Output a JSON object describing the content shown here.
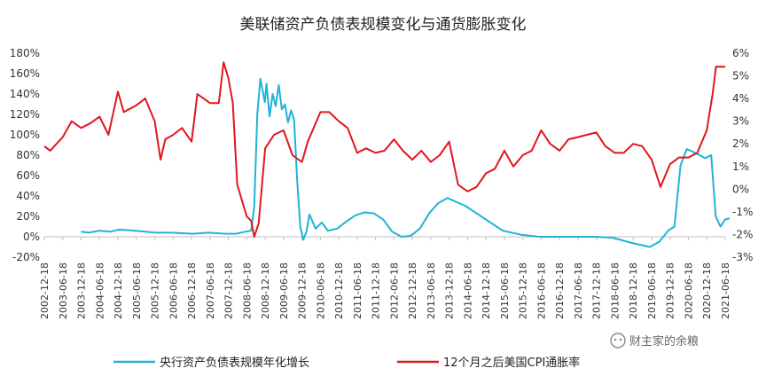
{
  "chart_data": {
    "type": "line",
    "title": "美联储资产负债表规模变化与通货膨胀变化",
    "grid": false,
    "legend_position": "bottom",
    "watermark": "财主家的余粮",
    "colors": {
      "balance": "#22B2D8",
      "cpi": "#E0161E"
    },
    "left_axis": {
      "min": -20,
      "max": 180,
      "ticks": [
        "-20%",
        "0%",
        "20%",
        "40%",
        "60%",
        "80%",
        "100%",
        "120%",
        "140%",
        "160%",
        "180%"
      ]
    },
    "right_axis": {
      "min": -3,
      "max": 6,
      "ticks": [
        "-3%",
        "-2%",
        "-1%",
        "0%",
        "1%",
        "2%",
        "3%",
        "4%",
        "5%",
        "6%"
      ]
    },
    "x_ticks": [
      "2002-12-18",
      "2003-06-18",
      "2003-12-18",
      "2004-06-18",
      "2004-12-18",
      "2005-06-18",
      "2005-12-18",
      "2006-06-18",
      "2006-12-18",
      "2007-06-18",
      "2007-12-18",
      "2008-06-18",
      "2008-12-18",
      "2009-06-18",
      "2009-12-18",
      "2010-06-18",
      "2010-12-18",
      "2011-06-18",
      "2011-12-18",
      "2012-06-18",
      "2012-12-18",
      "2013-06-18",
      "2013-12-18",
      "2014-06-18",
      "2014-12-18",
      "2015-06-18",
      "2015-12-18",
      "2016-06-18",
      "2016-12-18",
      "2017-06-18",
      "2017-12-18",
      "2018-06-18",
      "2018-12-18",
      "2019-06-18",
      "2019-12-18",
      "2020-06-18",
      "2020-12-18",
      "2021-06-18"
    ],
    "series": [
      {
        "name": "央行资产负债表规模年化增长",
        "axis": "left",
        "points": [
          [
            "2003-12-18",
            5
          ],
          [
            "2004-03-01",
            4
          ],
          [
            "2004-06-18",
            6
          ],
          [
            "2004-10-01",
            5
          ],
          [
            "2005-01-01",
            7
          ],
          [
            "2005-06-01",
            6
          ],
          [
            "2006-01-01",
            4
          ],
          [
            "2006-06-01",
            4
          ],
          [
            "2007-01-01",
            3
          ],
          [
            "2007-06-01",
            4
          ],
          [
            "2007-12-01",
            3
          ],
          [
            "2008-03-01",
            3
          ],
          [
            "2008-06-01",
            5
          ],
          [
            "2008-08-01",
            6
          ],
          [
            "2008-09-01",
            30
          ],
          [
            "2008-10-01",
            120
          ],
          [
            "2008-11-01",
            155
          ],
          [
            "2008-12-15",
            132
          ],
          [
            "2009-01-01",
            150
          ],
          [
            "2009-02-01",
            118
          ],
          [
            "2009-03-01",
            140
          ],
          [
            "2009-04-01",
            128
          ],
          [
            "2009-05-01",
            149
          ],
          [
            "2009-06-01",
            125
          ],
          [
            "2009-07-01",
            130
          ],
          [
            "2009-08-01",
            112
          ],
          [
            "2009-09-01",
            124
          ],
          [
            "2009-10-01",
            115
          ],
          [
            "2009-11-01",
            55
          ],
          [
            "2009-12-01",
            10
          ],
          [
            "2010-01-01",
            -3
          ],
          [
            "2010-02-01",
            5
          ],
          [
            "2010-03-01",
            22
          ],
          [
            "2010-05-01",
            8
          ],
          [
            "2010-07-01",
            14
          ],
          [
            "2010-09-01",
            6
          ],
          [
            "2010-12-01",
            8
          ],
          [
            "2011-03-01",
            15
          ],
          [
            "2011-06-01",
            21
          ],
          [
            "2011-09-01",
            24
          ],
          [
            "2011-12-01",
            23
          ],
          [
            "2012-03-01",
            17
          ],
          [
            "2012-06-01",
            5
          ],
          [
            "2012-09-01",
            0
          ],
          [
            "2012-12-01",
            1
          ],
          [
            "2013-03-01",
            8
          ],
          [
            "2013-06-01",
            23
          ],
          [
            "2013-09-01",
            33
          ],
          [
            "2013-12-01",
            38
          ],
          [
            "2014-06-01",
            30
          ],
          [
            "2014-12-01",
            18
          ],
          [
            "2015-06-01",
            6
          ],
          [
            "2015-12-01",
            2
          ],
          [
            "2016-06-01",
            0
          ],
          [
            "2016-12-01",
            0
          ],
          [
            "2017-06-01",
            0
          ],
          [
            "2017-12-01",
            0
          ],
          [
            "2018-06-01",
            -1
          ],
          [
            "2018-12-01",
            -6
          ],
          [
            "2019-06-01",
            -10
          ],
          [
            "2019-09-01",
            -5
          ],
          [
            "2019-12-01",
            6
          ],
          [
            "2020-02-01",
            10
          ],
          [
            "2020-04-01",
            70
          ],
          [
            "2020-06-01",
            86
          ],
          [
            "2020-09-01",
            82
          ],
          [
            "2020-12-01",
            77
          ],
          [
            "2021-02-01",
            80
          ],
          [
            "2021-03-15",
            20
          ],
          [
            "2021-05-01",
            10
          ],
          [
            "2021-06-18",
            17
          ],
          [
            "2021-08-01",
            18
          ]
        ]
      },
      {
        "name": "12个月之后美国CPI通胀率",
        "axis": "right",
        "points": [
          [
            "2002-12-18",
            1.9
          ],
          [
            "2003-02-15",
            1.7
          ],
          [
            "2003-06-18",
            2.3
          ],
          [
            "2003-09-15",
            3.0
          ],
          [
            "2003-12-18",
            2.7
          ],
          [
            "2004-03-15",
            2.9
          ],
          [
            "2004-06-18",
            3.2
          ],
          [
            "2004-09-15",
            2.4
          ],
          [
            "2004-12-18",
            4.3
          ],
          [
            "2005-02-15",
            3.4
          ],
          [
            "2005-06-18",
            3.7
          ],
          [
            "2005-09-15",
            4.0
          ],
          [
            "2005-12-18",
            3.0
          ],
          [
            "2006-02-15",
            1.3
          ],
          [
            "2006-04-01",
            2.2
          ],
          [
            "2006-06-18",
            2.4
          ],
          [
            "2006-09-15",
            2.7
          ],
          [
            "2006-12-18",
            2.1
          ],
          [
            "2007-02-15",
            4.2
          ],
          [
            "2007-06-18",
            3.8
          ],
          [
            "2007-09-15",
            3.8
          ],
          [
            "2007-11-01",
            5.6
          ],
          [
            "2007-12-18",
            4.9
          ],
          [
            "2008-02-01",
            3.8
          ],
          [
            "2008-03-15",
            0.2
          ],
          [
            "2008-06-18",
            -1.2
          ],
          [
            "2008-08-01",
            -1.4
          ],
          [
            "2008-09-01",
            -2.1
          ],
          [
            "2008-10-15",
            -1.5
          ],
          [
            "2008-12-18",
            1.8
          ],
          [
            "2009-03-15",
            2.4
          ],
          [
            "2009-06-18",
            2.6
          ],
          [
            "2009-09-15",
            1.5
          ],
          [
            "2009-12-18",
            1.2
          ],
          [
            "2010-02-15",
            2.1
          ],
          [
            "2010-06-18",
            3.4
          ],
          [
            "2010-09-15",
            3.4
          ],
          [
            "2010-12-18",
            3.0
          ],
          [
            "2011-03-15",
            2.7
          ],
          [
            "2011-06-18",
            1.6
          ],
          [
            "2011-09-15",
            1.8
          ],
          [
            "2011-12-18",
            1.6
          ],
          [
            "2012-03-15",
            1.7
          ],
          [
            "2012-06-18",
            2.2
          ],
          [
            "2012-09-15",
            1.7
          ],
          [
            "2012-12-18",
            1.3
          ],
          [
            "2013-03-15",
            1.7
          ],
          [
            "2013-06-18",
            1.2
          ],
          [
            "2013-09-15",
            1.5
          ],
          [
            "2013-12-18",
            2.1
          ],
          [
            "2014-03-15",
            0.2
          ],
          [
            "2014-06-18",
            -0.1
          ],
          [
            "2014-09-15",
            0.1
          ],
          [
            "2014-12-18",
            0.7
          ],
          [
            "2015-03-15",
            0.9
          ],
          [
            "2015-06-18",
            1.7
          ],
          [
            "2015-09-15",
            1.0
          ],
          [
            "2015-12-18",
            1.5
          ],
          [
            "2016-03-15",
            1.7
          ],
          [
            "2016-06-18",
            2.6
          ],
          [
            "2016-09-15",
            2.0
          ],
          [
            "2016-12-18",
            1.7
          ],
          [
            "2017-03-15",
            2.2
          ],
          [
            "2017-06-18",
            2.3
          ],
          [
            "2017-09-15",
            2.4
          ],
          [
            "2017-12-18",
            2.5
          ],
          [
            "2018-03-15",
            1.9
          ],
          [
            "2018-06-18",
            1.6
          ],
          [
            "2018-09-15",
            1.6
          ],
          [
            "2018-12-18",
            2.0
          ],
          [
            "2019-03-15",
            1.9
          ],
          [
            "2019-06-18",
            1.3
          ],
          [
            "2019-09-15",
            0.1
          ],
          [
            "2019-12-18",
            1.1
          ],
          [
            "2020-03-15",
            1.4
          ],
          [
            "2020-06-18",
            1.4
          ],
          [
            "2020-09-15",
            1.6
          ],
          [
            "2020-12-18",
            2.6
          ],
          [
            "2021-02-15",
            4.2
          ],
          [
            "2021-03-18",
            5.4
          ],
          [
            "2021-06-18",
            5.4
          ]
        ]
      }
    ]
  }
}
